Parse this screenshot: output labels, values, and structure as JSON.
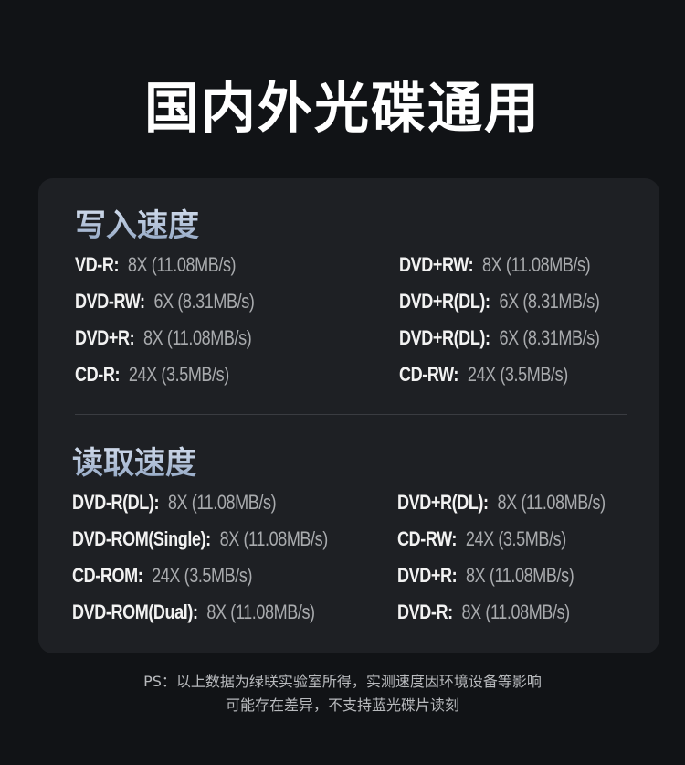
{
  "title": "国内外光碟通用",
  "write": {
    "heading": "写入速度",
    "left": [
      {
        "label": "VD-R:",
        "value": "8X (11.08MB/s)"
      },
      {
        "label": "DVD-RW:",
        "value": "6X (8.31MB/s)"
      },
      {
        "label": "DVD+R:",
        "value": "8X (11.08MB/s)"
      },
      {
        "label": "CD-R:",
        "value": "24X (3.5MB/s)"
      }
    ],
    "right": [
      {
        "label": "DVD+RW:",
        "value": "8X (11.08MB/s)"
      },
      {
        "label": "DVD+R(DL):",
        "value": "6X (8.31MB/s)"
      },
      {
        "label": "DVD+R(DL):",
        "value": "6X (8.31MB/s)"
      },
      {
        "label": "CD-RW:",
        "value": "24X (3.5MB/s)"
      }
    ]
  },
  "read": {
    "heading": "读取速度",
    "left": [
      {
        "label": "DVD-R(DL):",
        "value": "8X (11.08MB/s)"
      },
      {
        "label": "DVD-ROM(Single):",
        "value": "8X (11.08MB/s)"
      },
      {
        "label": "CD-ROM:",
        "value": "24X (3.5MB/s)"
      },
      {
        "label": "DVD-ROM(Dual):",
        "value": "8X (11.08MB/s)"
      }
    ],
    "right": [
      {
        "label": "DVD+R(DL):",
        "value": "8X (11.08MB/s)"
      },
      {
        "label": "CD-RW:",
        "value": "24X (3.5MB/s)"
      },
      {
        "label": "DVD+R:",
        "value": "8X (11.08MB/s)"
      },
      {
        "label": "DVD-R:",
        "value": "8X (11.08MB/s)"
      }
    ]
  },
  "note": {
    "line1": "PS：以上数据为绿联实验室所得，实测速度因环境设备等影响",
    "line2": "可能存在差异，不支持蓝光碟片读刻"
  }
}
